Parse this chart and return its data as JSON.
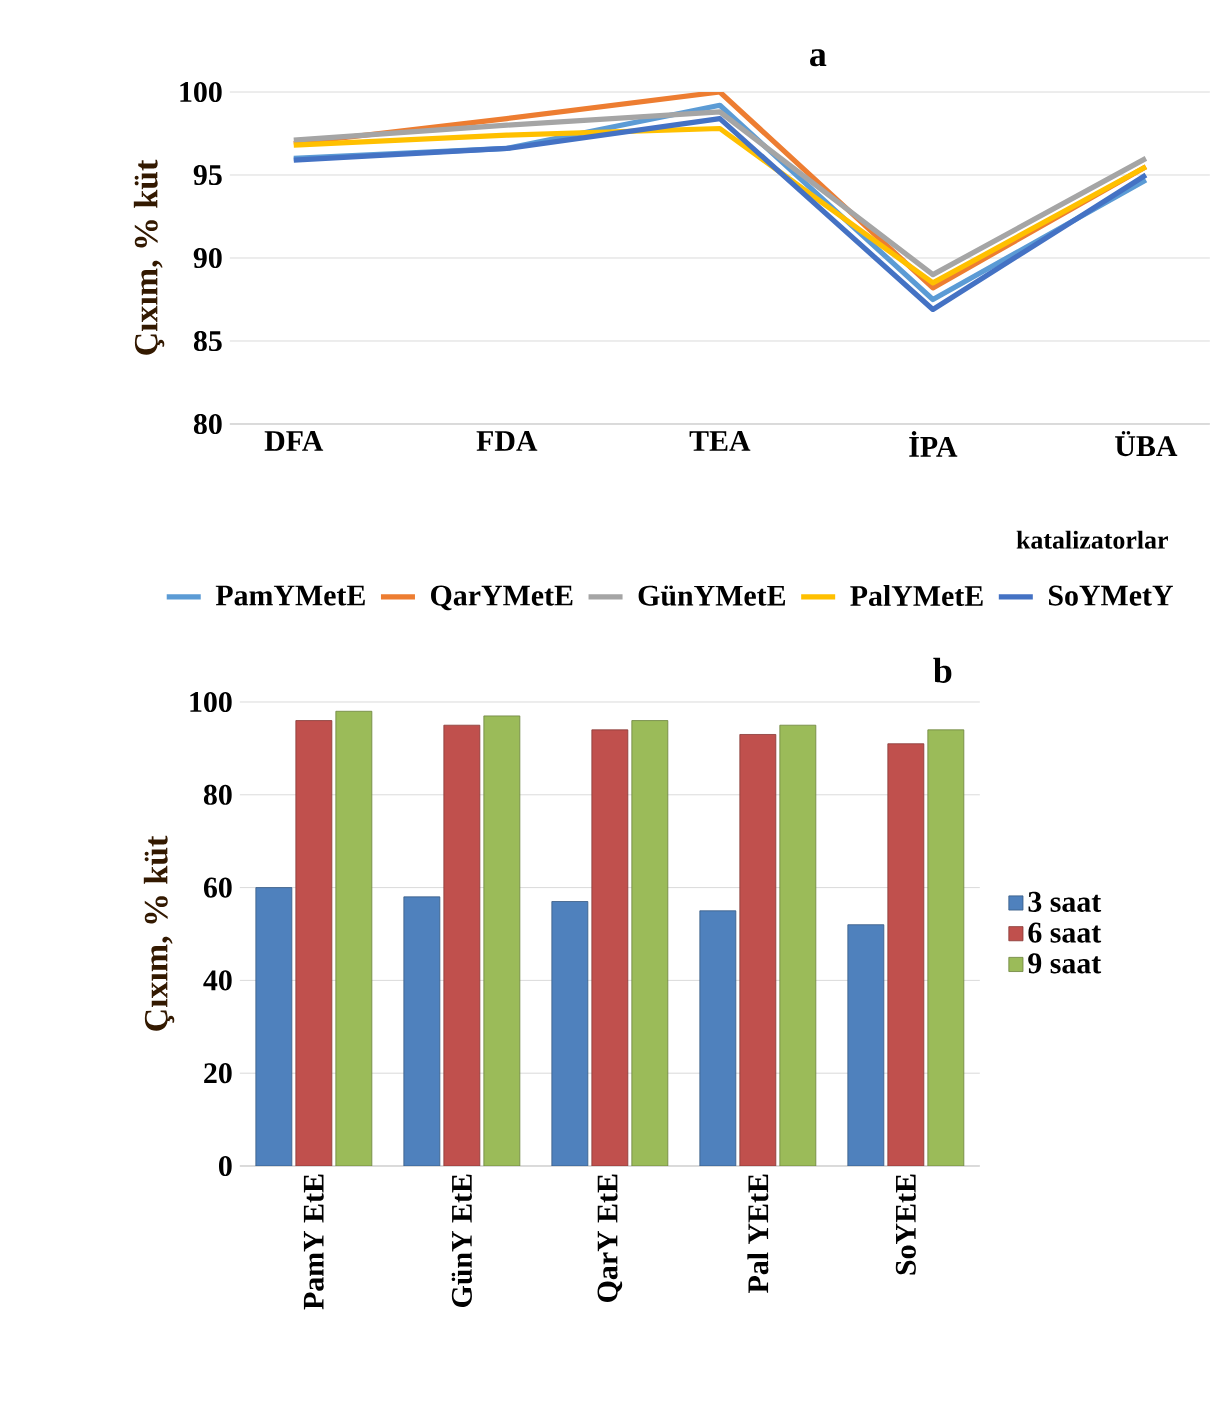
{
  "chart_data": [
    {
      "type": "line",
      "title": "a",
      "xlabel": "katalizatorlar",
      "ylabel": "Çıxım, % küt",
      "categories": [
        "DFA",
        "FDA",
        "TEA",
        "İPA",
        "ÜBA"
      ],
      "ylim": [
        80,
        100
      ],
      "yticks": [
        80,
        85,
        90,
        95,
        100
      ],
      "grid": "y",
      "legend": "bottom",
      "marker": "none",
      "line_style": "solid",
      "series": [
        {
          "name": "PamYMetE",
          "color": "#5b9bd5",
          "values": [
            96.0,
            96.6,
            99.2,
            87.5,
            94.7
          ]
        },
        {
          "name": "QarYMetE",
          "color": "#ed7d31",
          "values": [
            96.9,
            98.4,
            100.0,
            88.2,
            95.5
          ]
        },
        {
          "name": "GünYMetE",
          "color": "#a5a5a5",
          "values": [
            97.1,
            98.0,
            98.8,
            89.0,
            96.0
          ]
        },
        {
          "name": "PalYMetE",
          "color": "#ffc000",
          "values": [
            96.8,
            97.4,
            97.8,
            88.5,
            95.5
          ]
        },
        {
          "name": "SoYMetY",
          "color": "#4472c4",
          "values": [
            95.9,
            96.6,
            98.4,
            86.9,
            95.0
          ]
        }
      ]
    },
    {
      "type": "bar",
      "title": "b",
      "ylabel": "Çıxım, % küt",
      "categories": [
        "PamY EtE",
        "GünY EtE",
        "QarY EtE",
        "Pal YEtE",
        "SoYEtE"
      ],
      "ylim": [
        0,
        100
      ],
      "yticks": [
        0,
        20,
        40,
        60,
        80,
        100
      ],
      "grid": "y",
      "legend": "right",
      "series": [
        {
          "name": "3 saat",
          "color": "#4f81bd",
          "values": [
            60,
            58,
            57,
            55,
            52
          ]
        },
        {
          "name": "6 saat",
          "color": "#c0504d",
          "values": [
            96,
            95,
            94,
            93,
            91
          ]
        },
        {
          "name": "9 saat",
          "color": "#9bbb59",
          "values": [
            98,
            97,
            96,
            95,
            94
          ]
        }
      ]
    }
  ]
}
